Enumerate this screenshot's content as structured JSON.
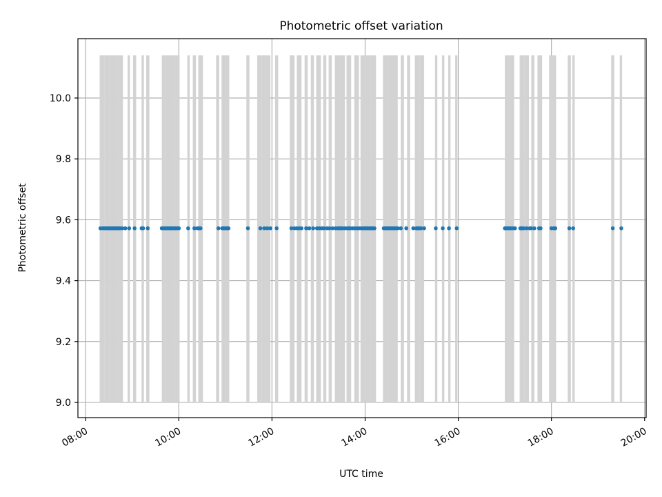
{
  "chart_data": {
    "type": "scatter",
    "title": "Photometric offset variation",
    "xlabel": "UTC time",
    "ylabel": "Photometric offset",
    "xlim": [
      "07:50",
      "20:02"
    ],
    "ylim": [
      8.95,
      10.195
    ],
    "x_ticks": [
      "08:00",
      "10:00",
      "12:00",
      "14:00",
      "16:00",
      "18:00",
      "20:00"
    ],
    "y_ticks": [
      "9.0",
      "9.2",
      "9.4",
      "9.6",
      "9.8",
      "10.0"
    ],
    "grid": true,
    "colors": {
      "points": "#1f77b4",
      "bands": "#d3d3d3",
      "grid": "#b0b0b0"
    },
    "bands": {
      "ymin": 9.0,
      "ymax": 10.14,
      "spans": [
        [
          "08:18",
          "08:24"
        ],
        [
          "08:24",
          "08:31"
        ],
        [
          "08:31",
          "08:38"
        ],
        [
          "08:38",
          "08:43"
        ],
        [
          "08:43",
          "08:48"
        ],
        [
          "08:54",
          "08:57"
        ],
        [
          "09:01",
          "09:05"
        ],
        [
          "09:12",
          "09:15"
        ],
        [
          "09:18",
          "09:22"
        ],
        [
          "09:38",
          "09:43"
        ],
        [
          "09:43",
          "09:49"
        ],
        [
          "09:49",
          "09:55"
        ],
        [
          "09:55",
          "10:01"
        ],
        [
          "10:11",
          "10:14"
        ],
        [
          "10:18",
          "10:22"
        ],
        [
          "10:25",
          "10:31"
        ],
        [
          "10:48",
          "10:52"
        ],
        [
          "10:55",
          "11:01"
        ],
        [
          "11:01",
          "11:05"
        ],
        [
          "11:27",
          "11:31"
        ],
        [
          "11:41",
          "11:47"
        ],
        [
          "11:47",
          "11:52"
        ],
        [
          "11:52",
          "11:58"
        ],
        [
          "12:04",
          "12:08"
        ],
        [
          "12:23",
          "12:29"
        ],
        [
          "12:32",
          "12:38"
        ],
        [
          "12:42",
          "12:46"
        ],
        [
          "12:50",
          "12:54"
        ],
        [
          "12:57",
          "13:03"
        ],
        [
          "13:06",
          "13:10"
        ],
        [
          "13:13",
          "13:17"
        ],
        [
          "13:21",
          "13:27"
        ],
        [
          "13:27",
          "13:34"
        ],
        [
          "13:36",
          "13:42"
        ],
        [
          "13:46",
          "13:52"
        ],
        [
          "13:54",
          "14:00"
        ],
        [
          "14:00",
          "14:07"
        ],
        [
          "14:07",
          "14:14"
        ],
        [
          "14:23",
          "14:29"
        ],
        [
          "14:29",
          "14:36"
        ],
        [
          "14:36",
          "14:42"
        ],
        [
          "14:46",
          "14:50"
        ],
        [
          "14:54",
          "14:58"
        ],
        [
          "15:04",
          "15:10"
        ],
        [
          "15:10",
          "15:16"
        ],
        [
          "15:30",
          "15:33"
        ],
        [
          "15:39",
          "15:42"
        ],
        [
          "15:47",
          "15:50"
        ],
        [
          "15:56",
          "15:59"
        ],
        [
          "17:00",
          "17:06"
        ],
        [
          "17:06",
          "17:12"
        ],
        [
          "17:19",
          "17:25"
        ],
        [
          "17:25",
          "17:31"
        ],
        [
          "17:34",
          "17:38"
        ],
        [
          "17:42",
          "17:48"
        ],
        [
          "17:57",
          "18:01"
        ],
        [
          "18:01",
          "18:06"
        ],
        [
          "18:21",
          "18:25"
        ],
        [
          "18:27",
          "18:30"
        ],
        [
          "19:17",
          "19:21"
        ],
        [
          "19:28",
          "19:31"
        ]
      ]
    },
    "series": [
      {
        "y": 9.572,
        "x": [
          "08:19",
          "08:22",
          "08:24",
          "08:26",
          "08:28",
          "08:30",
          "08:32",
          "08:34",
          "08:36",
          "08:38",
          "08:40",
          "08:42",
          "08:44",
          "08:47",
          "08:51",
          "08:56",
          "09:03",
          "09:12",
          "09:14",
          "09:20",
          "09:38",
          "09:40",
          "09:42",
          "09:44",
          "09:46",
          "09:48",
          "09:50",
          "09:52",
          "09:54",
          "09:56",
          "09:58",
          "10:00",
          "10:12",
          "10:20",
          "10:24",
          "10:26",
          "10:28",
          "10:51",
          "10:56",
          "10:58",
          "11:00",
          "11:02",
          "11:04",
          "11:29",
          "11:45",
          "11:50",
          "11:54",
          "11:58",
          "12:06",
          "12:25",
          "12:29",
          "12:32",
          "12:35",
          "12:38",
          "12:44",
          "12:48",
          "12:53",
          "12:58",
          "13:01",
          "13:04",
          "13:07",
          "13:11",
          "13:14",
          "13:18",
          "13:22",
          "13:25",
          "13:27",
          "13:29",
          "13:31",
          "13:34",
          "13:37",
          "13:39",
          "13:41",
          "13:44",
          "13:47",
          "13:50",
          "13:53",
          "13:56",
          "13:58",
          "14:00",
          "14:02",
          "14:04",
          "14:06",
          "14:08",
          "14:10",
          "14:12",
          "14:24",
          "14:26",
          "14:28",
          "14:30",
          "14:32",
          "14:34",
          "14:36",
          "14:38",
          "14:40",
          "14:42",
          "14:46",
          "14:53",
          "15:02",
          "15:06",
          "15:08",
          "15:10",
          "15:12",
          "15:16",
          "15:31",
          "15:40",
          "15:48",
          "15:58",
          "17:00",
          "17:02",
          "17:04",
          "17:06",
          "17:08",
          "17:10",
          "17:13",
          "17:20",
          "17:22",
          "17:24",
          "17:28",
          "17:32",
          "17:34",
          "17:38",
          "17:44",
          "17:46",
          "18:00",
          "18:03",
          "18:05",
          "18:23",
          "18:28",
          "19:19",
          "19:30"
        ]
      }
    ]
  }
}
